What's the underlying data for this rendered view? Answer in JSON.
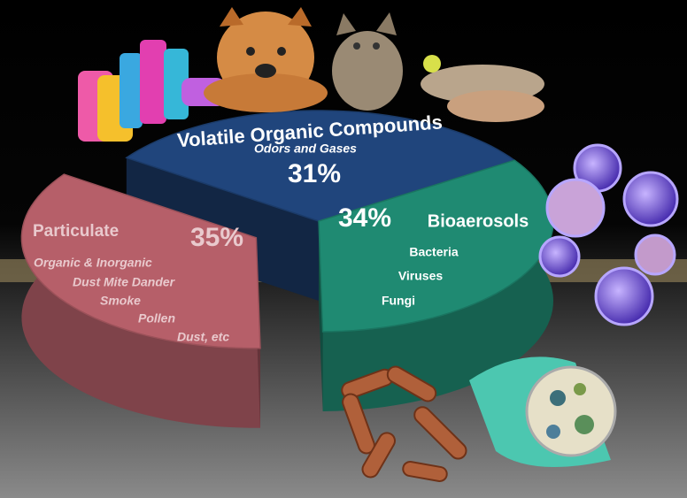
{
  "chart_data": {
    "type": "pie",
    "categories": [
      "Volatile Organic Compounds",
      "Bioaerosols",
      "Particulate"
    ],
    "values": [
      31,
      34,
      35
    ],
    "value_labels": [
      "31%",
      "34%",
      "35%"
    ],
    "colors": [
      "#20457c",
      "#1f8a72",
      "#b65f69"
    ],
    "details": [
      [
        "Odors and Gases"
      ],
      [
        "Bacteria",
        "Viruses",
        "Fungi"
      ],
      [
        "Organic & Inorganic",
        "Dust Mite Dander",
        "Smoke",
        "Pollen",
        "Dust, etc"
      ]
    ]
  }
}
